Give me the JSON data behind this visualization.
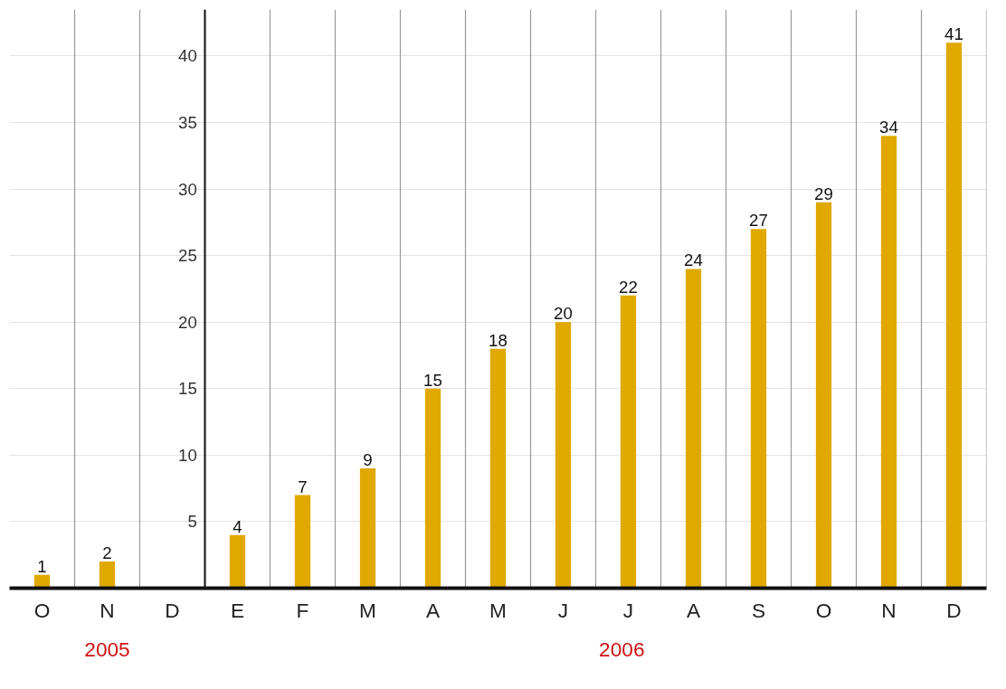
{
  "chart_data": {
    "type": "bar",
    "categories": [
      "O",
      "N",
      "D",
      "E",
      "F",
      "M",
      "A",
      "M",
      "J",
      "J",
      "A",
      "S",
      "O",
      "N",
      "D"
    ],
    "values": [
      1,
      2,
      null,
      4,
      7,
      9,
      15,
      18,
      20,
      22,
      24,
      27,
      29,
      34,
      41
    ],
    "color": "#e0a800",
    "ylim": [
      0,
      43.5
    ],
    "yticks": [
      5,
      10,
      15,
      20,
      25,
      30,
      35,
      40
    ],
    "grid": true,
    "data_labels": true,
    "annotations": [
      "2005",
      "2006"
    ]
  }
}
